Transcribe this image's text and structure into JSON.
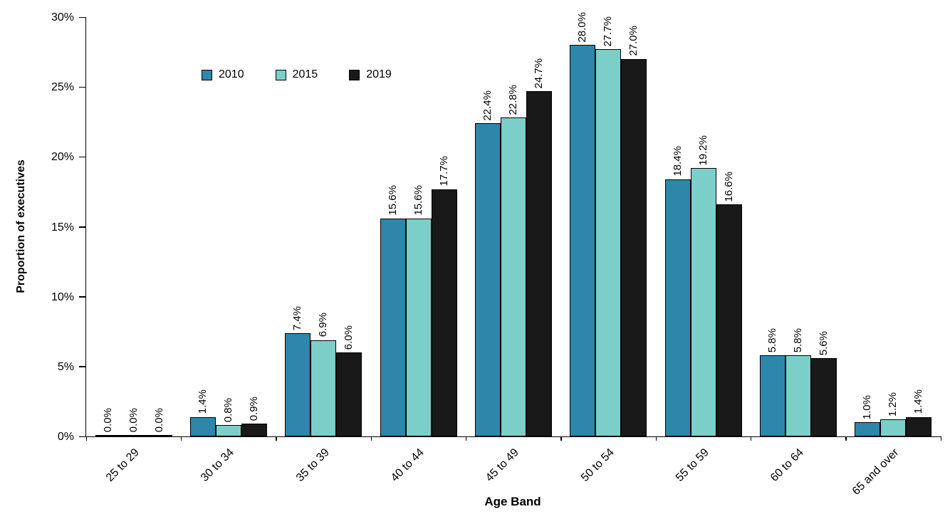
{
  "chart_data": {
    "type": "bar",
    "title": "",
    "xlabel": "Age Band",
    "ylabel": "Proportion of executives",
    "ylim": [
      0,
      30
    ],
    "grid": false,
    "legend_position": "top-left-inset",
    "bar_border_color": "#000000",
    "ytick_values": [
      0,
      5,
      10,
      15,
      20,
      25,
      30
    ],
    "ytick_labels": [
      "0%",
      "5%",
      "10%",
      "15%",
      "20%",
      "25%",
      "30%"
    ],
    "categories": [
      "25 to 29",
      "30 to 34",
      "35 to 39",
      "40 to 44",
      "45 to 49",
      "50 to 54",
      "55 to 59",
      "60 to 64",
      "65 and over"
    ],
    "series": [
      {
        "name": "2010",
        "color": "#2E86AB",
        "values": [
          0.0,
          1.4,
          7.4,
          15.6,
          22.4,
          28.0,
          18.4,
          5.8,
          1.0
        ],
        "value_labels": [
          "0.0%",
          "1.4%",
          "7.4%",
          "15.6%",
          "22.4%",
          "28.0%",
          "18.4%",
          "5.8%",
          "1.0%"
        ]
      },
      {
        "name": "2015",
        "color": "#7CCFC9",
        "values": [
          0.0,
          0.8,
          6.9,
          15.6,
          22.8,
          27.7,
          19.2,
          5.8,
          1.2
        ],
        "value_labels": [
          "0.0%",
          "0.8%",
          "6.9%",
          "15.6%",
          "22.8%",
          "27.7%",
          "19.2%",
          "5.8%",
          "1.2%"
        ]
      },
      {
        "name": "2019",
        "color": "#191919",
        "values": [
          0.0,
          0.9,
          6.0,
          17.7,
          24.7,
          27.0,
          16.6,
          5.6,
          1.4
        ],
        "value_labels": [
          "0.0%",
          "0.9%",
          "6.0%",
          "17.7%",
          "24.7%",
          "27.0%",
          "16.6%",
          "5.6%",
          "1.4%"
        ]
      }
    ]
  }
}
